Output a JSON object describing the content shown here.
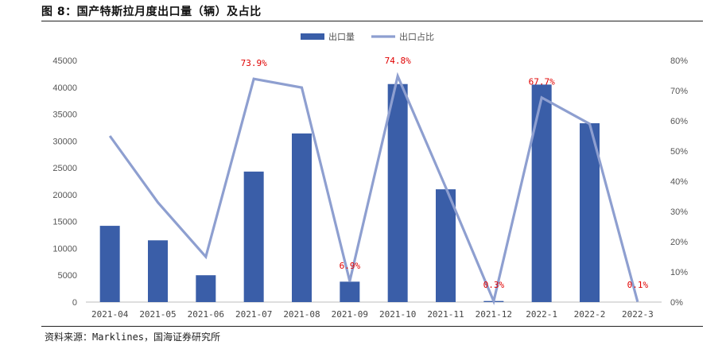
{
  "header": {
    "title": "图 8：国产特斯拉月度出口量（辆）及占比"
  },
  "footer": {
    "source": "资料来源：Marklines，国海证券研究所"
  },
  "chart_data": {
    "type": "bar",
    "categories": [
      "2021-04",
      "2021-05",
      "2021-06",
      "2021-07",
      "2021-08",
      "2021-09",
      "2021-10",
      "2021-11",
      "2021-12",
      "2022-1",
      "2022-2",
      "2022-3"
    ],
    "series": [
      {
        "name": "出口量",
        "type": "bar",
        "axis": "left",
        "color": "#3a5ea8",
        "values": [
          14200,
          11500,
          5000,
          24300,
          31400,
          3800,
          40600,
          21000,
          200,
          40500,
          33300,
          0
        ]
      },
      {
        "name": "出口占比",
        "type": "line",
        "axis": "right",
        "color": "#8e9fd0",
        "values": [
          0.55,
          0.33,
          0.15,
          0.739,
          0.71,
          0.069,
          0.748,
          0.38,
          0.003,
          0.677,
          0.59,
          0.001
        ]
      }
    ],
    "data_labels": [
      {
        "index": 3,
        "text": "73.9%"
      },
      {
        "index": 5,
        "text": "6.9%"
      },
      {
        "index": 6,
        "text": "74.8%"
      },
      {
        "index": 8,
        "text": "0.3%"
      },
      {
        "index": 9,
        "text": "67.7%"
      },
      {
        "index": 11,
        "text": "0.1%"
      }
    ],
    "y_left": {
      "min": 0,
      "max": 45000,
      "ticks": [
        "0",
        "5000",
        "10000",
        "15000",
        "20000",
        "25000",
        "30000",
        "35000",
        "40000",
        "45000"
      ]
    },
    "y_right": {
      "min": 0,
      "max": 0.8,
      "ticks": [
        "0%",
        "10%",
        "20%",
        "30%",
        "40%",
        "50%",
        "60%",
        "70%",
        "80%"
      ]
    },
    "legend": {
      "position": "top-center"
    },
    "grid": false
  }
}
